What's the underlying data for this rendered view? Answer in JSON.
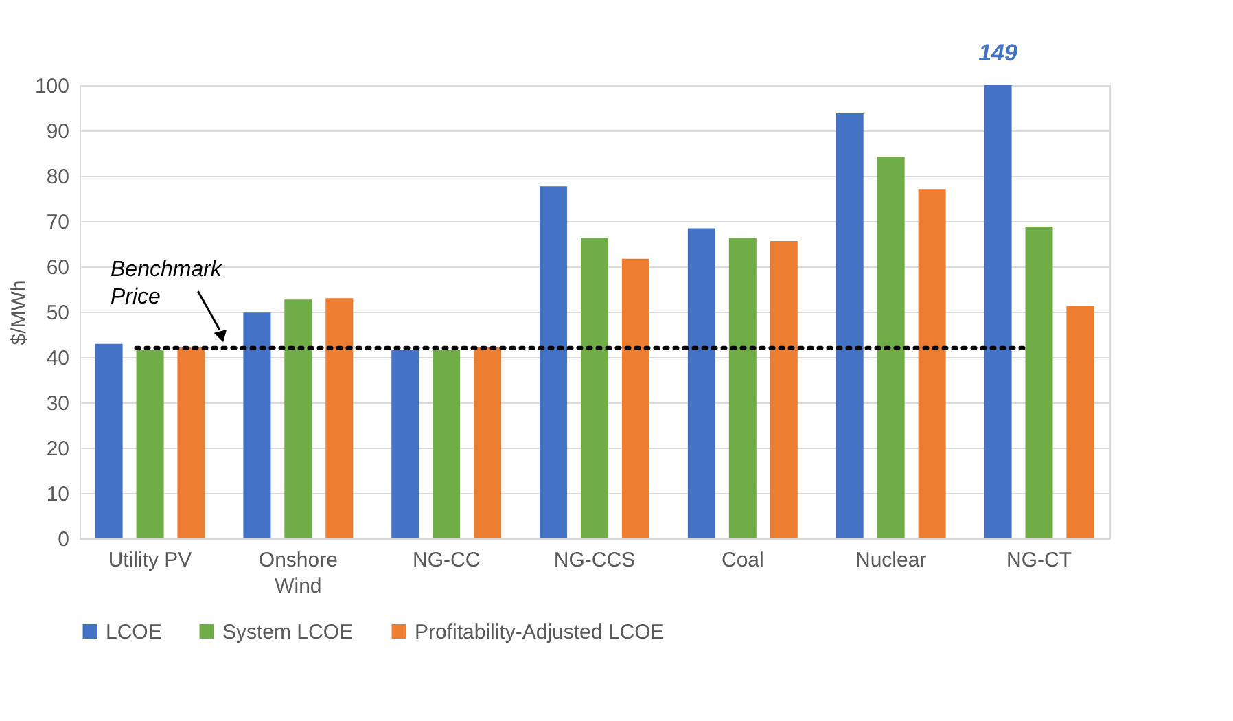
{
  "chart_data": {
    "type": "bar",
    "ylabel": "$/MWh",
    "categories": [
      "Utility PV",
      "Onshore Wind",
      "NG-CC",
      "NG-CCS",
      "Coal",
      "Nuclear",
      "NG-CT"
    ],
    "series": [
      {
        "name": "LCOE",
        "color": "#4472c4",
        "values": [
          42.9,
          49.8,
          41.6,
          77.7,
          68.4,
          93.8,
          100
        ]
      },
      {
        "name": "System LCOE",
        "color": "#70ad47",
        "values": [
          41.6,
          52.7,
          41.6,
          66.3,
          66.3,
          84.2,
          68.8
        ]
      },
      {
        "name": "Profitability-Adjusted LCOE",
        "color": "#ed7d31",
        "values": [
          42.1,
          53.0,
          42.2,
          61.7,
          65.6,
          77.1,
          51.3
        ]
      }
    ],
    "ylim": [
      0,
      100
    ],
    "yticks": [
      0,
      10,
      20,
      30,
      40,
      50,
      60,
      70,
      80,
      90,
      100
    ],
    "grid": "y",
    "legend": "bottom",
    "ref_lines": [
      {
        "axis": "y",
        "value": 42,
        "label": "Benchmark Price",
        "color": "#000000",
        "line_style": "dotted"
      }
    ],
    "annotations": [
      "149"
    ]
  }
}
